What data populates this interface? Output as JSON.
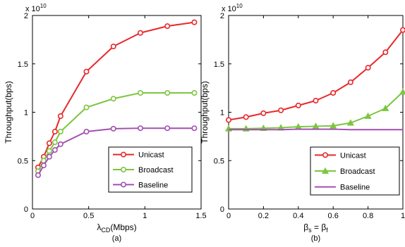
{
  "colors": {
    "unicast": "#e8282b",
    "broadcast": "#7cc640",
    "baseline": "#a24fb1",
    "axis": "#000000"
  },
  "chart_data": [
    {
      "type": "line",
      "panel_label": "(a)",
      "xlabel": "λ",
      "xlabel_sub": "CD",
      "xlabel_suffix": "(Mbps)",
      "ylabel": "Throughput(bps)",
      "y_multiplier": "x 10",
      "y_multiplier_exp": "10",
      "xlim": [
        0,
        1.5
      ],
      "ylim": [
        0,
        2
      ],
      "xticks": [
        0,
        0.5,
        1,
        1.5
      ],
      "xtick_labels": [
        "0",
        "0.5",
        "1",
        "1.5"
      ],
      "yticks": [
        0,
        0.5,
        1,
        1.5,
        2
      ],
      "ytick_labels": [
        "0",
        "0.5",
        "1",
        "1.5",
        "2"
      ],
      "grid": false,
      "legend_position": "lower-right",
      "series": [
        {
          "name": "Unicast",
          "color": "#e8282b",
          "marker": "circle",
          "x": [
            0.05,
            0.1,
            0.15,
            0.2,
            0.25,
            0.48,
            0.72,
            0.96,
            1.2,
            1.44
          ],
          "y": [
            0.43,
            0.54,
            0.68,
            0.8,
            0.96,
            1.42,
            1.68,
            1.82,
            1.89,
            1.93
          ]
        },
        {
          "name": "Broadcast",
          "color": "#7cc640",
          "marker": "circle",
          "x": [
            0.05,
            0.1,
            0.15,
            0.2,
            0.25,
            0.48,
            0.72,
            0.96,
            1.2,
            1.44
          ],
          "y": [
            0.39,
            0.5,
            0.6,
            0.69,
            0.8,
            1.05,
            1.14,
            1.2,
            1.2,
            1.2
          ]
        },
        {
          "name": "Baseline",
          "color": "#a24fb1",
          "marker": "circle",
          "x": [
            0.05,
            0.1,
            0.15,
            0.2,
            0.25,
            0.48,
            0.72,
            0.96,
            1.2,
            1.44
          ],
          "y": [
            0.35,
            0.45,
            0.54,
            0.61,
            0.67,
            0.8,
            0.83,
            0.835,
            0.835,
            0.835
          ]
        }
      ]
    },
    {
      "type": "line",
      "panel_label": "(b)",
      "xlabel": "β",
      "xlabel_sub": "s",
      "xlabel_mid": " = β",
      "xlabel_sub2": "f",
      "ylabel": "Throughput(bps)",
      "y_multiplier": "x 10",
      "y_multiplier_exp": "10",
      "xlim": [
        0,
        1
      ],
      "ylim": [
        0,
        2
      ],
      "xticks": [
        0,
        0.2,
        0.4,
        0.6,
        0.8,
        1
      ],
      "xtick_labels": [
        "0",
        "0.2",
        "0.4",
        "0.6",
        "0.8",
        "1"
      ],
      "yticks": [
        0,
        0.5,
        1,
        1.5,
        2
      ],
      "ytick_labels": [
        "0",
        "0.5",
        "1",
        "1.5",
        "2"
      ],
      "grid": false,
      "legend_position": "lower-right",
      "series": [
        {
          "name": "Unicast",
          "color": "#e8282b",
          "marker": "circle",
          "x": [
            0,
            0.1,
            0.2,
            0.3,
            0.4,
            0.5,
            0.6,
            0.7,
            0.8,
            0.9,
            1.0
          ],
          "y": [
            0.92,
            0.95,
            0.99,
            1.02,
            1.07,
            1.12,
            1.2,
            1.31,
            1.46,
            1.62,
            1.85
          ]
        },
        {
          "name": "Broadcast",
          "color": "#7cc640",
          "marker": "triangle",
          "x": [
            0,
            0.1,
            0.2,
            0.3,
            0.4,
            0.5,
            0.6,
            0.7,
            0.8,
            0.9,
            1.0
          ],
          "y": [
            0.83,
            0.83,
            0.835,
            0.84,
            0.85,
            0.855,
            0.86,
            0.89,
            0.96,
            1.04,
            1.21
          ]
        },
        {
          "name": "Baseline",
          "color": "#a24fb1",
          "marker": "none",
          "x": [
            0,
            0.1,
            0.2,
            0.3,
            0.4,
            0.5,
            0.6,
            0.7,
            0.8,
            0.9,
            1.0
          ],
          "y": [
            0.82,
            0.82,
            0.82,
            0.82,
            0.825,
            0.825,
            0.825,
            0.82,
            0.82,
            0.82,
            0.82
          ]
        }
      ]
    }
  ]
}
